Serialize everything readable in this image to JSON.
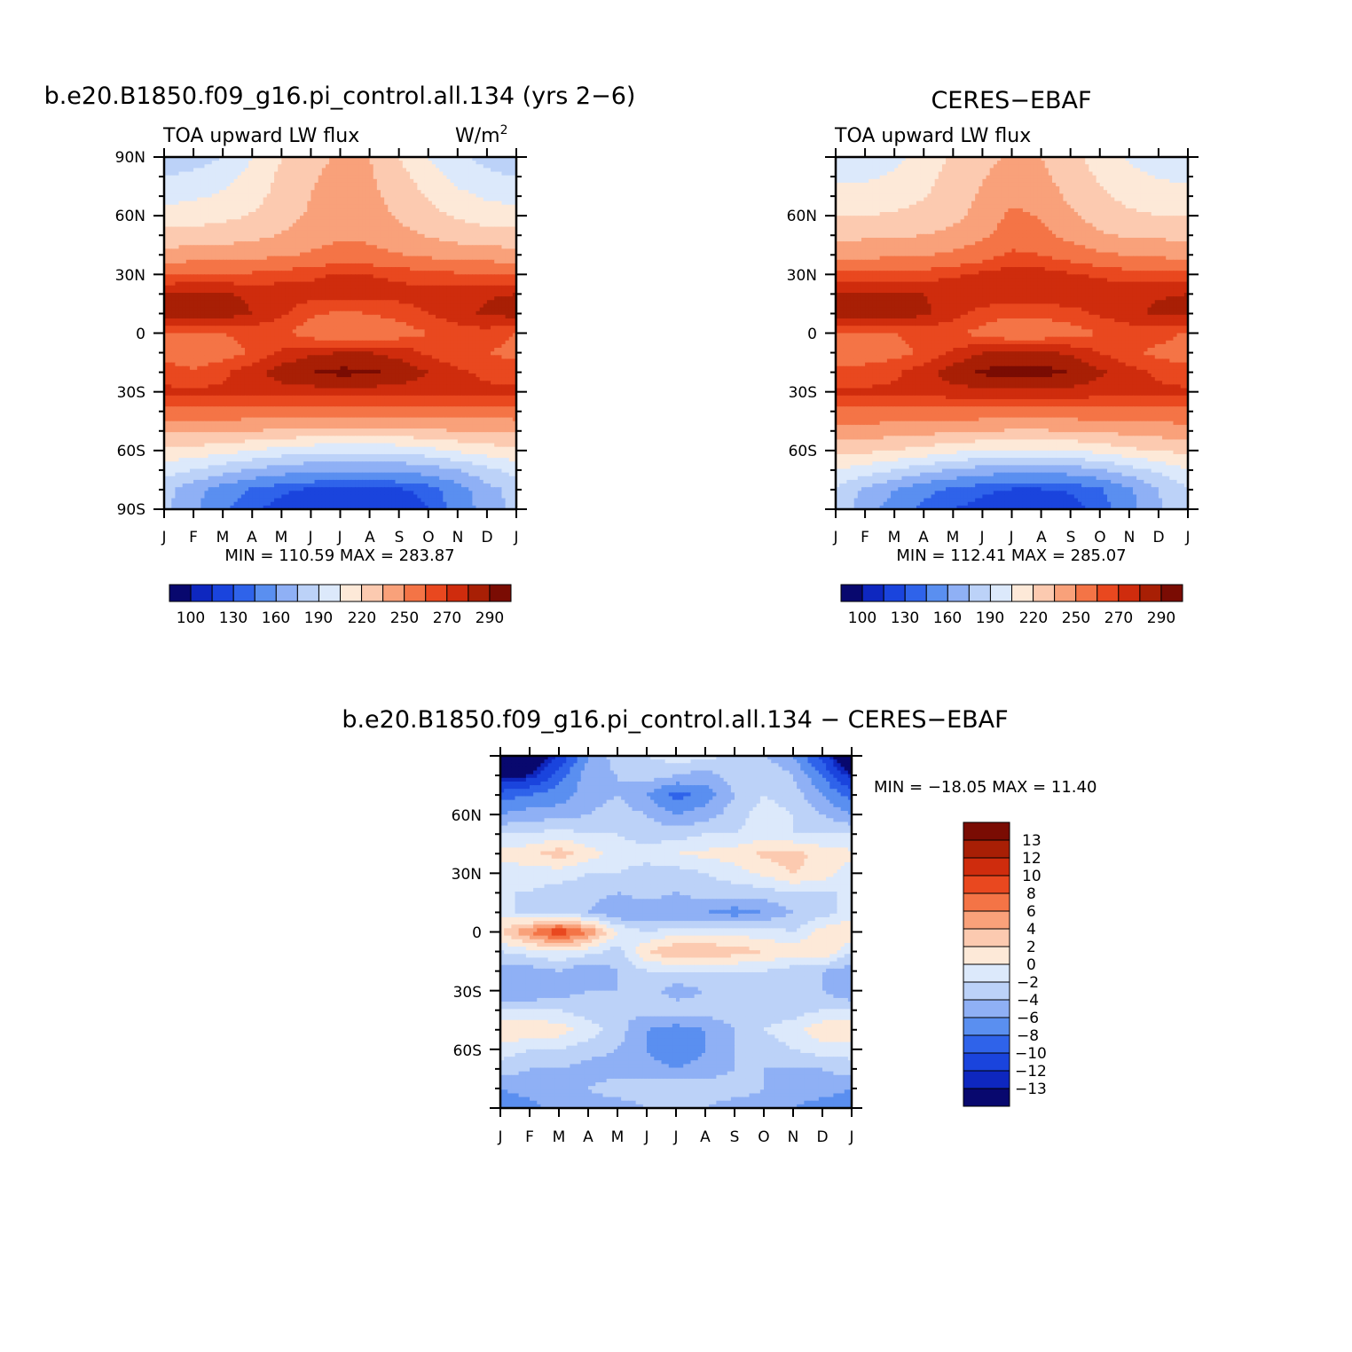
{
  "colors": {
    "mean_palette": [
      "#08086e",
      "#0e27bf",
      "#1a44dd",
      "#2f63ea",
      "#5a8ff0",
      "#8fb0f5",
      "#bcd2f8",
      "#dce9fb",
      "#fde9d8",
      "#fccab0",
      "#f9a17a",
      "#f47446",
      "#e9481f",
      "#cf2c0d",
      "#a81f05",
      "#7a0c03"
    ],
    "diff_palette": [
      "#08086e",
      "#0e27bf",
      "#1a44dd",
      "#2f63ea",
      "#5a8ff0",
      "#8fb0f5",
      "#bcd2f8",
      "#dce9fb",
      "#fde9d8",
      "#fccab0",
      "#f9a17a",
      "#f47446",
      "#e9481f",
      "#cf2c0d",
      "#a81f05",
      "#7a0c03"
    ]
  },
  "months": [
    "J",
    "F",
    "M",
    "A",
    "M",
    "J",
    "J",
    "A",
    "S",
    "O",
    "N",
    "D",
    "J"
  ],
  "panels": [
    {
      "title": "b.e20.B1850.f09_g16.pi_control.all.134 (yrs 2−6)",
      "subtitle": "TOA upward LW flux",
      "units": "W/m",
      "units_sup": "2",
      "lat_labels": [
        "90N",
        "60N",
        "30N",
        "0",
        "30S",
        "60S",
        "90S"
      ],
      "minmax": "MIN = 110.59 MAX = 283.87",
      "colorbar_labels": [
        "100",
        "130",
        "160",
        "190",
        "220",
        "250",
        "270",
        "290"
      ]
    },
    {
      "title": "CERES−EBAF",
      "subtitle": "TOA upward LW flux",
      "units": "",
      "units_sup": "",
      "lat_labels": [
        "",
        "60N",
        "30N",
        "0",
        "30S",
        "60S",
        ""
      ],
      "minmax": "MIN = 112.41 MAX = 285.07",
      "colorbar_labels": [
        "100",
        "130",
        "160",
        "190",
        "220",
        "250",
        "270",
        "290"
      ]
    },
    {
      "title": "b.e20.B1850.f09_g16.pi_control.all.134 − CERES−EBAF",
      "lat_labels": [
        "",
        "60N",
        "30N",
        "0",
        "30S",
        "60S",
        ""
      ],
      "minmax": "MIN = −18.05 MAX =  11.40",
      "colorbar_labels": [
        "13",
        "12",
        "10",
        "8",
        "6",
        "4",
        "2",
        "0",
        "−2",
        "−4",
        "−6",
        "−8",
        "−10",
        "−12",
        "−13"
      ]
    }
  ],
  "chart_data": [
    {
      "type": "heatmap",
      "title": "b.e20.B1850.f09_g16.pi_control.all.134 (yrs 2−6)",
      "subtitle": "TOA upward LW flux",
      "units": "W/m2",
      "x": [
        "J",
        "F",
        "M",
        "A",
        "M",
        "J",
        "J",
        "A",
        "S",
        "O",
        "N",
        "D",
        "J"
      ],
      "y": [
        90,
        80,
        70,
        60,
        50,
        40,
        30,
        20,
        10,
        0,
        -10,
        -20,
        -30,
        -40,
        -50,
        -60,
        -70,
        -80,
        -90
      ],
      "xlim": [
        0,
        12
      ],
      "ylim": [
        -90,
        90
      ],
      "levels": [
        100,
        110,
        120,
        130,
        145,
        160,
        175,
        190,
        205,
        220,
        235,
        250,
        260,
        270,
        280,
        290
      ],
      "values": [
        [
          165,
          168,
          175,
          190,
          205,
          215,
          222,
          220,
          205,
          190,
          178,
          170,
          165
        ],
        [
          175,
          178,
          185,
          195,
          208,
          218,
          225,
          222,
          210,
          198,
          185,
          178,
          175
        ],
        [
          185,
          188,
          192,
          200,
          210,
          220,
          227,
          224,
          214,
          204,
          194,
          188,
          185
        ],
        [
          196,
          198,
          201,
          206,
          214,
          222,
          229,
          226,
          218,
          210,
          203,
          198,
          196
        ],
        [
          210,
          211,
          213,
          216,
          221,
          227,
          233,
          231,
          225,
          219,
          214,
          211,
          210
        ],
        [
          226,
          227,
          228,
          230,
          233,
          237,
          242,
          240,
          236,
          232,
          229,
          227,
          226
        ],
        [
          250,
          251,
          251,
          252,
          255,
          258,
          261,
          260,
          257,
          254,
          252,
          251,
          250
        ],
        [
          270,
          272,
          271,
          268,
          266,
          264,
          265,
          265,
          264,
          265,
          267,
          269,
          270
        ],
        [
          274,
          280,
          276,
          270,
          262,
          252,
          248,
          250,
          254,
          260,
          266,
          272,
          274
        ],
        [
          250,
          248,
          250,
          253,
          252,
          244,
          236,
          238,
          244,
          250,
          255,
          256,
          250
        ],
        [
          246,
          240,
          244,
          252,
          262,
          268,
          270,
          270,
          266,
          258,
          252,
          250,
          246
        ],
        [
          256,
          252,
          258,
          266,
          275,
          280,
          283,
          282,
          278,
          270,
          262,
          258,
          256
        ],
        [
          262,
          262,
          262,
          264,
          266,
          266,
          266,
          266,
          265,
          264,
          263,
          262,
          262
        ],
        [
          244,
          244,
          245,
          245,
          244,
          243,
          243,
          243,
          243,
          243,
          244,
          244,
          244
        ],
        [
          222,
          222,
          221,
          220,
          218,
          216,
          215,
          215,
          216,
          218,
          220,
          221,
          222
        ],
        [
          200,
          200,
          196,
          190,
          184,
          180,
          178,
          178,
          180,
          185,
          192,
          198,
          200
        ],
        [
          182,
          175,
          166,
          158,
          152,
          148,
          146,
          146,
          148,
          152,
          160,
          170,
          182
        ],
        [
          165,
          150,
          138,
          128,
          122,
          118,
          116,
          116,
          118,
          124,
          138,
          155,
          165
        ],
        [
          165,
          148,
          132,
          122,
          116,
          113,
          111,
          111,
          113,
          120,
          135,
          152,
          165
        ]
      ]
    },
    {
      "type": "heatmap",
      "title": "CERES−EBAF",
      "subtitle": "TOA upward LW flux",
      "x": [
        "J",
        "F",
        "M",
        "A",
        "M",
        "J",
        "J",
        "A",
        "S",
        "O",
        "N",
        "D",
        "J"
      ],
      "y": [
        90,
        80,
        70,
        60,
        50,
        40,
        30,
        20,
        10,
        0,
        -10,
        -20,
        -30,
        -40,
        -50,
        -60,
        -70,
        -80,
        -90
      ],
      "xlim": [
        0,
        12
      ],
      "ylim": [
        -90,
        90
      ],
      "levels": [
        100,
        110,
        120,
        130,
        145,
        160,
        175,
        190,
        205,
        220,
        235,
        250,
        260,
        270,
        280,
        290
      ],
      "values": [
        [
          182,
          182,
          186,
          196,
          208,
          216,
          222,
          220,
          210,
          198,
          188,
          182,
          182
        ],
        [
          188,
          188,
          192,
          200,
          210,
          219,
          226,
          223,
          213,
          203,
          194,
          189,
          188
        ],
        [
          194,
          195,
          198,
          204,
          212,
          222,
          232,
          228,
          217,
          208,
          200,
          196,
          194
        ],
        [
          204,
          205,
          207,
          210,
          216,
          225,
          238,
          234,
          222,
          214,
          208,
          205,
          204
        ],
        [
          216,
          217,
          218,
          220,
          224,
          232,
          244,
          240,
          230,
          222,
          218,
          217,
          216
        ],
        [
          230,
          231,
          232,
          234,
          238,
          244,
          252,
          250,
          244,
          238,
          234,
          232,
          230
        ],
        [
          253,
          254,
          254,
          255,
          258,
          262,
          266,
          265,
          261,
          258,
          255,
          254,
          253
        ],
        [
          270,
          272,
          272,
          270,
          268,
          267,
          268,
          268,
          267,
          267,
          268,
          269,
          270
        ],
        [
          274,
          280,
          277,
          272,
          264,
          256,
          252,
          253,
          256,
          262,
          267,
          272,
          274
        ],
        [
          248,
          248,
          250,
          253,
          252,
          246,
          240,
          241,
          245,
          250,
          254,
          255,
          248
        ],
        [
          244,
          244,
          246,
          252,
          262,
          270,
          272,
          272,
          268,
          260,
          252,
          247,
          244
        ],
        [
          254,
          254,
          258,
          266,
          276,
          282,
          285,
          284,
          280,
          272,
          264,
          258,
          254
        ],
        [
          262,
          262,
          262,
          264,
          266,
          267,
          268,
          268,
          267,
          265,
          263,
          262,
          262
        ],
        [
          246,
          246,
          246,
          246,
          246,
          245,
          245,
          245,
          245,
          245,
          246,
          246,
          246
        ],
        [
          228,
          228,
          227,
          225,
          222,
          220,
          219,
          219,
          220,
          222,
          225,
          227,
          228
        ],
        [
          208,
          208,
          205,
          200,
          194,
          190,
          188,
          188,
          190,
          195,
          202,
          206,
          208
        ],
        [
          190,
          183,
          175,
          166,
          158,
          153,
          150,
          150,
          152,
          158,
          168,
          178,
          190
        ],
        [
          172,
          158,
          145,
          134,
          127,
          122,
          119,
          119,
          121,
          128,
          142,
          160,
          172
        ],
        [
          170,
          152,
          138,
          127,
          120,
          116,
          113,
          113,
          116,
          124,
          140,
          158,
          170
        ]
      ]
    },
    {
      "type": "heatmap",
      "title": "b.e20.B1850.f09_g16.pi_control.all.134 − CERES−EBAF",
      "x": [
        "J",
        "F",
        "M",
        "A",
        "M",
        "J",
        "J",
        "A",
        "S",
        "O",
        "N",
        "D",
        "J"
      ],
      "y": [
        90,
        80,
        70,
        60,
        50,
        40,
        30,
        20,
        10,
        0,
        -10,
        -20,
        -30,
        -40,
        -50,
        -60,
        -70,
        -80,
        -90
      ],
      "xlim": [
        0,
        12
      ],
      "ylim": [
        -90,
        90
      ],
      "levels": [
        -13,
        -12,
        -10,
        -8,
        -6,
        -4,
        -2,
        0,
        2,
        4,
        6,
        8,
        10,
        12,
        13
      ],
      "values": [
        [
          -18,
          -16,
          -12,
          -6,
          -3,
          -2,
          -1,
          -1,
          -3,
          -4,
          -6,
          -11,
          -17
        ],
        [
          -14,
          -13,
          -9,
          -5,
          -4,
          -3,
          -4,
          -5,
          -3,
          -2,
          -4,
          -8,
          -13
        ],
        [
          -9,
          -8,
          -7,
          -5,
          -4,
          -6,
          -9,
          -7,
          -4,
          -2,
          -3,
          -6,
          -9
        ],
        [
          -6,
          -5,
          -5,
          -4,
          -3,
          -4,
          -6,
          -5,
          -3,
          -1,
          -2,
          -4,
          -6
        ],
        [
          -2,
          -2,
          -1,
          -2,
          -2,
          -3,
          -3,
          -2,
          -2,
          -1,
          -2,
          -2,
          -2
        ],
        [
          0.5,
          1.5,
          3,
          1,
          -1,
          -1,
          0,
          0.5,
          1,
          2.5,
          3,
          1,
          0.5
        ],
        [
          -1,
          -1,
          -1,
          -2,
          -2,
          -3,
          -3,
          -2,
          -1,
          0.5,
          2,
          1,
          -1
        ],
        [
          -2,
          -2,
          -3,
          -3,
          -4,
          -3,
          -4,
          -3,
          -3,
          -3,
          -2,
          -2,
          -2
        ],
        [
          -1,
          -3,
          -3,
          -4,
          -6,
          -6,
          -6,
          -6,
          -7,
          -6,
          -4,
          -3,
          -1
        ],
        [
          2,
          6,
          10,
          6,
          0,
          -2,
          -1,
          -1,
          -1,
          -1,
          -2,
          1,
          2
        ],
        [
          -2,
          -1,
          0,
          -1,
          -3,
          2,
          4,
          4,
          3,
          2,
          1,
          2,
          -2
        ],
        [
          -5,
          -5,
          -4,
          -6,
          -4,
          -2,
          -2,
          -2,
          -2,
          -2,
          -3,
          -4,
          -5
        ],
        [
          -6,
          -6,
          -5,
          -4,
          -4,
          -3,
          -5,
          -4,
          -3,
          -2,
          -3,
          -4,
          -6
        ],
        [
          -2,
          -2,
          -2,
          -3,
          -4,
          -3,
          -3,
          -3,
          -3,
          -3,
          -3,
          -2,
          -2
        ],
        [
          1.5,
          2,
          1,
          -1,
          -3,
          -6,
          -7,
          -6,
          -4,
          -2,
          -1,
          1.5,
          1.5
        ],
        [
          -1,
          -2,
          -2,
          -3,
          -4,
          -6,
          -8,
          -6,
          -4,
          -3,
          -2,
          -1,
          -1
        ],
        [
          -3,
          -4,
          -4,
          -5,
          -5,
          -5,
          -6,
          -5,
          -4,
          -4,
          -4,
          -4,
          -3
        ],
        [
          -6,
          -5,
          -4,
          -4,
          -3,
          -3,
          -2,
          -3,
          -3,
          -4,
          -5,
          -5,
          -6
        ],
        [
          -8,
          -7,
          -5,
          -5,
          -5,
          -4,
          -4,
          -4,
          -5,
          -5,
          -6,
          -7,
          -8
        ]
      ]
    }
  ]
}
